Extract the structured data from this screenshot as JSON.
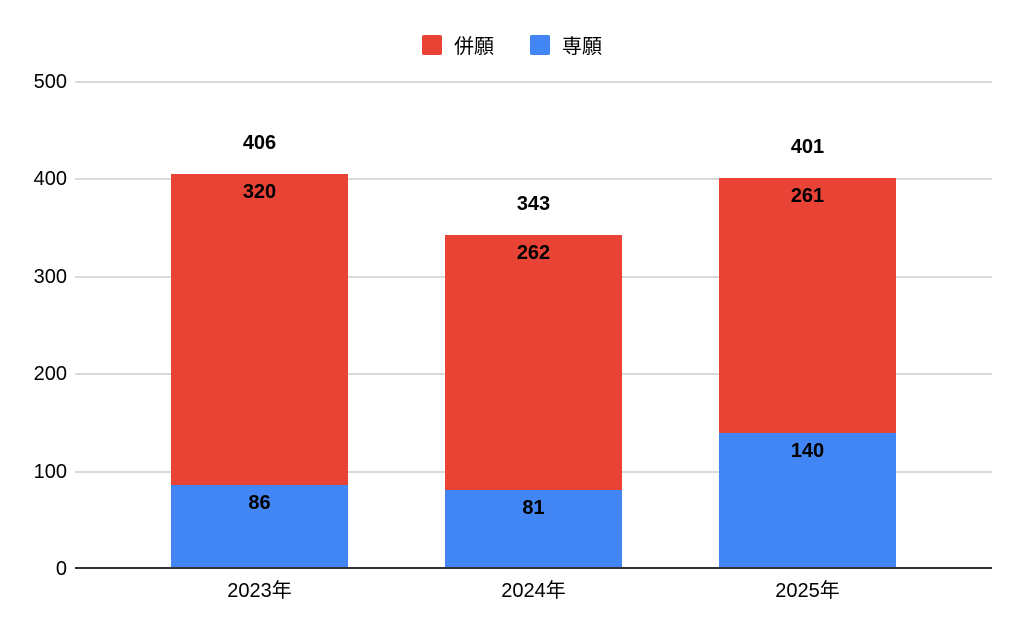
{
  "chart_data": {
    "type": "bar",
    "stacked": true,
    "title": "",
    "categories": [
      "2023年",
      "2024年",
      "2025年"
    ],
    "series": [
      {
        "name": "併願",
        "color": "#e94335",
        "values": [
          320,
          262,
          261
        ]
      },
      {
        "name": "専願",
        "color": "#4285f4",
        "values": [
          86,
          81,
          140
        ]
      }
    ],
    "stack_order_bottom_to_top": [
      "専願",
      "併願"
    ],
    "totals": [
      406,
      343,
      401
    ],
    "xlabel": "",
    "ylabel": "",
    "yticks": [
      0,
      100,
      200,
      300,
      400,
      500
    ],
    "ylim": [
      0,
      500
    ],
    "legend_position": "top",
    "grid": true
  },
  "colors": {
    "background": "#ffffff",
    "gridline": "#d9d9d9",
    "baseline": "#333333",
    "label_text": "#000000"
  }
}
